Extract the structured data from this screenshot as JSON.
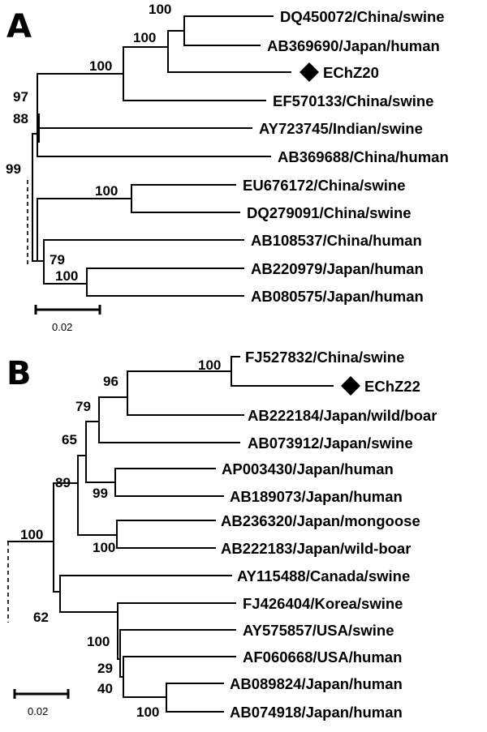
{
  "panels": [
    {
      "letter": "A",
      "scale_label": "0.02",
      "taxa": [
        "DQ450072/China/swine",
        "AB369690/Japan/human",
        "EChZ20",
        "EF570133/China/swine",
        "AY723745/Indian/swine",
        "AB369688/China/human",
        "EU676172/China/swine",
        "DQ279091/China/swine",
        "AB108537/China/human",
        "AB220979/Japan/human",
        "AB080575/Japan/human"
      ],
      "bootstrap": [
        "100",
        "100",
        "100",
        "97",
        "88",
        "99",
        "100",
        "79",
        "100"
      ],
      "marked_taxon": "EChZ20"
    },
    {
      "letter": "B",
      "scale_label": "0.02",
      "taxa": [
        "FJ527832/China/swine",
        "EChZ22",
        "AB222184/Japan/wild/boar",
        "AB073912/Japan/swine",
        "AP003430/Japan/human",
        "AB189073/Japan/human",
        "AB236320/Japan/mongoose",
        "AB222183/Japan/wild-boar",
        "AY115488/Canada/swine",
        "FJ426404/Korea/swine",
        "AY575857/USA/swine",
        "AF060668/USA/human",
        "AB089824/Japan/human",
        "AB074918/Japan/human"
      ],
      "bootstrap": [
        "100",
        "96",
        "79",
        "65",
        "89",
        "99",
        "100",
        "100",
        "62",
        "100",
        "29",
        "40",
        "100"
      ],
      "marked_taxon": "EChZ22"
    }
  ]
}
